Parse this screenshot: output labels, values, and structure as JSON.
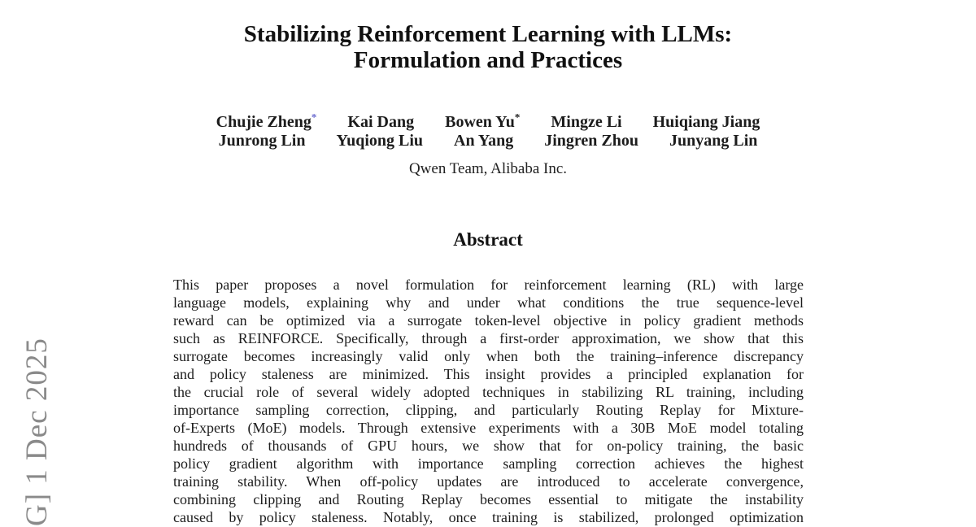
{
  "page": {
    "background_color": "#ffffff",
    "text_color": "#1c1c1c"
  },
  "watermark": {
    "text": "G] 1 Dec 2025",
    "color": "#8a8a8a"
  },
  "title": {
    "line1": "Stabilizing Reinforcement Learning with LLMs:",
    "line2": "Formulation and Practices"
  },
  "authors": {
    "footnote_mark_accent_color": "#6a6acf",
    "footnote_mark_dark_color": "#1c1c1c",
    "rows": [
      [
        {
          "name": "Chujie Zheng",
          "mark": "*"
        },
        {
          "name": "Kai Dang",
          "mark": ""
        },
        {
          "name": "Bowen Yu",
          "mark": "*"
        },
        {
          "name": "Mingze Li",
          "mark": ""
        },
        {
          "name": "Huiqiang Jiang",
          "mark": ""
        }
      ],
      [
        {
          "name": "Junrong Lin",
          "mark": ""
        },
        {
          "name": "Yuqiong Liu",
          "mark": ""
        },
        {
          "name": "An Yang",
          "mark": ""
        },
        {
          "name": "Jingren Zhou",
          "mark": ""
        },
        {
          "name": "Junyang Lin",
          "mark": ""
        }
      ]
    ],
    "affiliation": "Qwen Team, Alibaba Inc."
  },
  "abstract": {
    "heading": "Abstract",
    "lines": [
      "This paper proposes a novel formulation for reinforcement learning (RL) with large",
      "language models, explaining why and under what conditions the true sequence-level",
      "reward can be optimized via a surrogate token-level objective in policy gradient methods",
      "such as REINFORCE. Specifically, through a first-order approximation, we show that this",
      "surrogate becomes increasingly valid only when both the training–inference discrepancy",
      "and policy staleness are minimized. This insight provides a principled explanation for",
      "the crucial role of several widely adopted techniques in stabilizing RL training, including",
      "importance sampling correction, clipping, and particularly Routing Replay for Mixture-",
      "of-Experts (MoE) models. Through extensive experiments with a 30B MoE model totaling",
      "hundreds of thousands of GPU hours, we show that for on-policy training, the basic",
      "policy gradient algorithm with importance sampling correction achieves the highest",
      "training stability. When off-policy updates are introduced to accelerate convergence,",
      "combining clipping and Routing Replay becomes essential to mitigate the instability",
      "caused by policy staleness. Notably, once training is stabilized, prolonged optimization"
    ]
  }
}
